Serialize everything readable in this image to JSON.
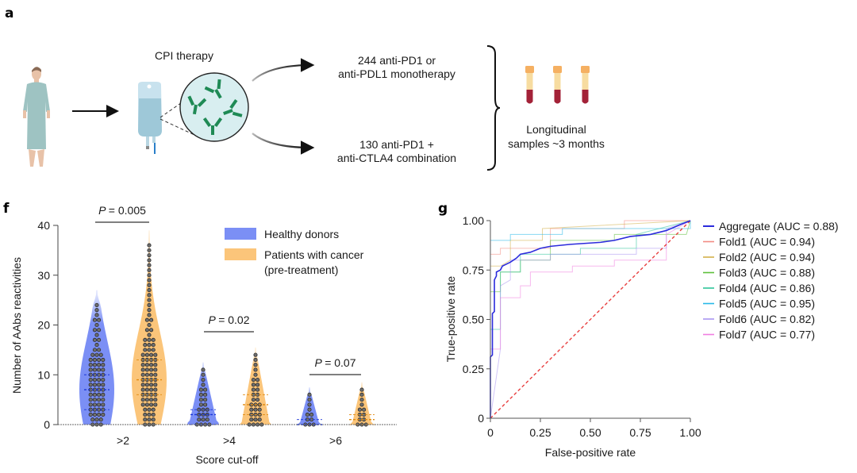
{
  "panel_a": {
    "label": "a",
    "therapy_title": "CPI therapy",
    "branch_top": [
      "244 anti-PD1 or",
      "anti-PDL1 monotherapy"
    ],
    "branch_bottom": [
      "130 anti-PD1 +",
      "anti-CTLA4 combination"
    ],
    "samples": [
      "Longitudinal",
      "samples ~3 months"
    ],
    "icons": [
      "patient-icon",
      "iv-bag-icon",
      "antibody-magnifier-icon",
      "blood-tube-icon"
    ]
  },
  "chart_data": [
    {
      "panel": "f",
      "type": "violin",
      "title": "",
      "xlabel": "Score cut-off",
      "ylabel": "Number of AAbs reactivities",
      "ylim": [
        0,
        40
      ],
      "yticks": [
        "0",
        "10",
        "20",
        "30",
        "40"
      ],
      "categories": [
        ">2",
        ">4",
        ">6"
      ],
      "legend": {
        "placement": "top-right",
        "entries": [
          {
            "label": "Healthy donors",
            "color": "#7b8ff5"
          },
          {
            "label": "Patients with cancer",
            "label2": "(pre-treatment)",
            "color": "#fbc57a"
          }
        ]
      },
      "pvalues": [
        {
          "category": ">2",
          "text": "= 0.005"
        },
        {
          "category": ">4",
          "text": "= 0.02"
        },
        {
          "category": ">6",
          "text": "= 0.07"
        }
      ],
      "series": [
        {
          "name": "Healthy donors",
          "color": "#7b8ff5",
          "max": [
            24,
            11,
            6
          ],
          "median": [
            7,
            2,
            0
          ],
          "q1": [
            3,
            0,
            0
          ],
          "q3": [
            10,
            3,
            1
          ]
        },
        {
          "name": "Patients with cancer (pre-treatment)",
          "color": "#fbc57a",
          "max": [
            36,
            14,
            7
          ],
          "median": [
            9,
            4,
            1
          ],
          "q1": [
            6,
            2,
            0
          ],
          "q3": [
            13,
            6,
            2
          ]
        }
      ]
    },
    {
      "panel": "g",
      "type": "line",
      "title": "",
      "xlabel": "False-positive rate",
      "ylabel": "True-positive rate",
      "xlim": [
        0,
        1
      ],
      "ylim": [
        0,
        1
      ],
      "xticks": [
        "0",
        "0.25",
        "0.50",
        "0.75",
        "1.00"
      ],
      "yticks": [
        "0",
        "0.25",
        "0.50",
        "0.75",
        "1.00"
      ],
      "legend": {
        "placement": "right"
      },
      "series": [
        {
          "name": "Aggregate (AUC = 0.88)",
          "color": "#2b2bdc",
          "width": 1.6,
          "x": [
            0,
            0,
            0.01,
            0.01,
            0.02,
            0.02,
            0.03,
            0.03,
            0.05,
            0.06,
            0.08,
            0.1,
            0.13,
            0.15,
            0.2,
            0.25,
            0.3,
            0.4,
            0.55,
            0.62,
            0.7,
            0.8,
            0.88,
            0.95,
            1.0
          ],
          "y": [
            0,
            0.31,
            0.32,
            0.53,
            0.54,
            0.7,
            0.72,
            0.74,
            0.75,
            0.77,
            0.78,
            0.79,
            0.81,
            0.83,
            0.84,
            0.86,
            0.87,
            0.88,
            0.89,
            0.9,
            0.92,
            0.93,
            0.95,
            0.98,
            1.0
          ]
        },
        {
          "name": "Fold1 (AUC = 0.94)",
          "color": "#f28b82",
          "width": 1,
          "x": [
            0,
            0,
            0.05,
            0.05,
            0.3,
            0.3,
            0.67,
            0.67,
            1.0
          ],
          "y": [
            0,
            0.83,
            0.83,
            0.86,
            0.86,
            0.96,
            0.96,
            1.0,
            1.0
          ]
        },
        {
          "name": "Fold2 (AUC = 0.94)",
          "color": "#d4b04a",
          "width": 1,
          "x": [
            0,
            0,
            0.05,
            0.1,
            0.1,
            0.26,
            0.26,
            1.0
          ],
          "y": [
            0,
            0.77,
            0.77,
            0.8,
            0.9,
            0.9,
            0.96,
            1.0
          ]
        },
        {
          "name": "Fold3 (AUC = 0.88)",
          "color": "#5cbf3a",
          "width": 1,
          "x": [
            0,
            0,
            0.05,
            0.05,
            0.15,
            0.15,
            0.3,
            0.3,
            0.62,
            0.62,
            0.98,
            1.0
          ],
          "y": [
            0,
            0.64,
            0.64,
            0.74,
            0.74,
            0.8,
            0.8,
            0.9,
            0.9,
            0.93,
            0.93,
            1.0
          ]
        },
        {
          "name": "Fold4 (AUC = 0.86)",
          "color": "#2ec49a",
          "width": 1,
          "x": [
            0,
            0,
            0.05,
            0.05,
            0.15,
            0.15,
            0.45,
            0.45,
            0.73,
            0.73,
            1.0
          ],
          "y": [
            0,
            0.45,
            0.45,
            0.74,
            0.74,
            0.83,
            0.83,
            0.86,
            0.86,
            0.93,
            1.0
          ]
        },
        {
          "name": "Fold5 (AUC = 0.95)",
          "color": "#27b8e8",
          "width": 1,
          "x": [
            0,
            0,
            0.1,
            0.1,
            0.36,
            0.36,
            1.0,
            1.0
          ],
          "y": [
            0,
            0.9,
            0.9,
            0.93,
            0.93,
            0.96,
            0.96,
            1.0
          ]
        },
        {
          "name": "Fold6 (AUC = 0.82)",
          "color": "#a996f2",
          "width": 1,
          "x": [
            0,
            0.05,
            0.05,
            0.1,
            0.1,
            0.3,
            0.3,
            0.73,
            0.73,
            0.88,
            0.88,
            1.0
          ],
          "y": [
            0,
            0.35,
            0.67,
            0.7,
            0.8,
            0.8,
            0.83,
            0.83,
            0.86,
            0.86,
            0.96,
            1.0
          ]
        },
        {
          "name": "Fold7 (AUC = 0.77)",
          "color": "#f07ee0",
          "width": 1,
          "x": [
            0,
            0,
            0.05,
            0.05,
            0.15,
            0.15,
            0.2,
            0.2,
            0.41,
            0.41,
            0.62,
            0.62,
            0.88,
            0.88,
            1.0
          ],
          "y": [
            0,
            0.35,
            0.35,
            0.61,
            0.61,
            0.67,
            0.67,
            0.74,
            0.74,
            0.77,
            0.77,
            0.8,
            0.8,
            0.93,
            1.0
          ]
        },
        {
          "name": "Chance",
          "color": "#e84040",
          "width": 1.4,
          "dashed": true,
          "x": [
            0,
            1
          ],
          "y": [
            0,
            1
          ],
          "in_legend": false
        }
      ]
    }
  ]
}
